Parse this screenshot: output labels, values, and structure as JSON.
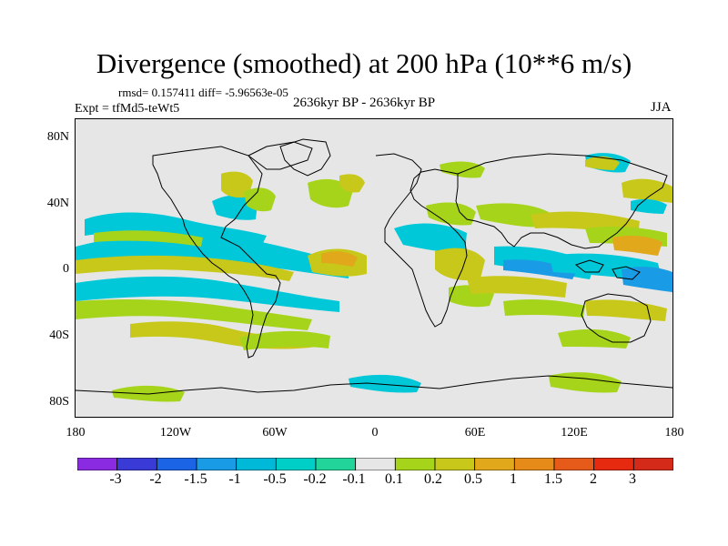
{
  "title": "Divergence (smoothed) at 200 hPa (10**6 m/s)",
  "stats": "rmsd= 0.157411 diff= -5.96563e-05",
  "experiment": "Expt = tfMd5-teWt5",
  "period": "2636kyr BP - 2636kyr BP",
  "season": "JJA",
  "axes": {
    "lat_ticks": [
      "80N",
      "40N",
      "0",
      "40S",
      "80S"
    ],
    "lon_ticks": [
      "180",
      "120W",
      "60W",
      "0",
      "60E",
      "120E",
      "180"
    ]
  },
  "legend": {
    "labels": [
      "-3",
      "-2",
      "-1.5",
      "-1",
      "-0.5",
      "-0.2",
      "-0.1",
      "0.1",
      "0.2",
      "0.5",
      "1",
      "1.5",
      "2",
      "3"
    ],
    "colors": [
      "#8a2be2",
      "#3a3ad6",
      "#1b64e6",
      "#1a9be6",
      "#00b8d8",
      "#00cfc8",
      "#22d49a",
      "#e6e6e6",
      "#a6d41a",
      "#c8c81a",
      "#e0a81a",
      "#e68a1a",
      "#e65a1a",
      "#e62a10",
      "#d42a1a"
    ]
  },
  "colors": {
    "background": "#e6e6e6",
    "land_outline": "#000000",
    "frame": "#000000"
  }
}
